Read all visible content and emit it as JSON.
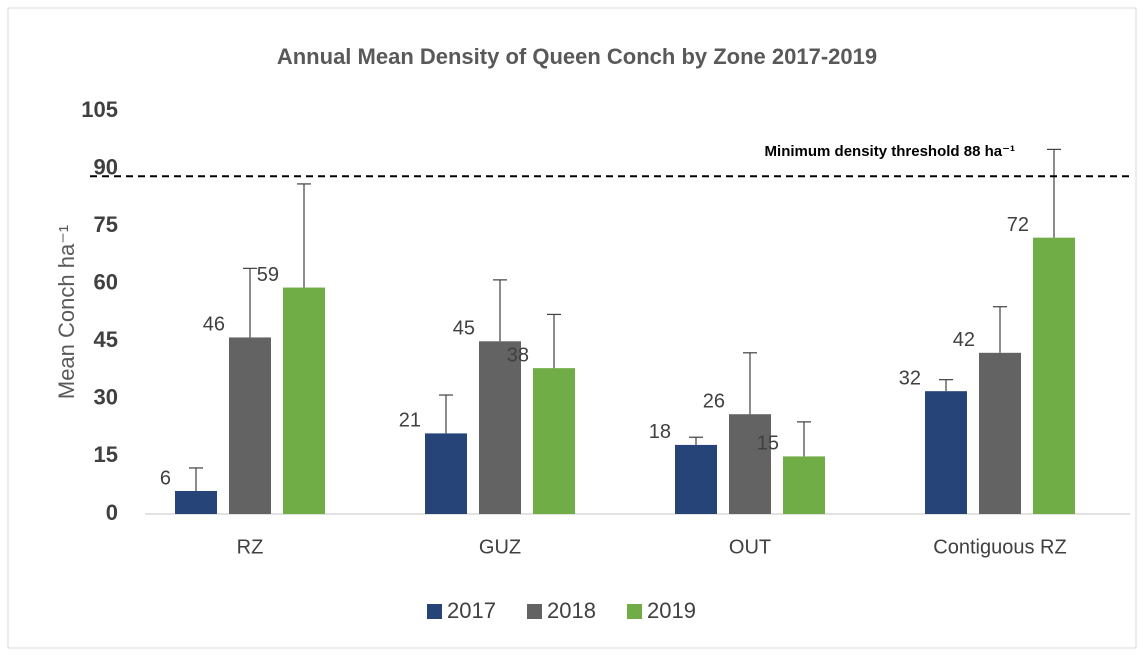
{
  "chart_data": {
    "type": "bar",
    "title": "Annual Mean Density of Queen Conch by Zone  2017-2019",
    "y_label": "Mean Conch ha⁻¹",
    "categories": [
      "RZ",
      "GUZ",
      "OUT",
      "Contiguous RZ"
    ],
    "series": [
      {
        "name": "2017",
        "color": "#264478",
        "values": [
          6,
          21,
          18,
          32
        ],
        "errors": [
          6,
          10,
          2,
          3
        ]
      },
      {
        "name": "2018",
        "color": "#636363",
        "values": [
          46,
          45,
          26,
          42
        ],
        "errors": [
          18,
          16,
          16,
          12
        ]
      },
      {
        "name": "2019",
        "color": "#70ad47",
        "values": [
          59,
          38,
          15,
          72
        ],
        "errors": [
          27,
          14,
          9,
          23
        ]
      }
    ],
    "threshold": {
      "value": 88,
      "label": "Minimum density threshold 88 ha⁻¹"
    },
    "ylim": [
      0,
      105
    ],
    "yticks": [
      0,
      15,
      30,
      45,
      60,
      75,
      90,
      105
    ],
    "grid": false,
    "legend": "bottom"
  }
}
